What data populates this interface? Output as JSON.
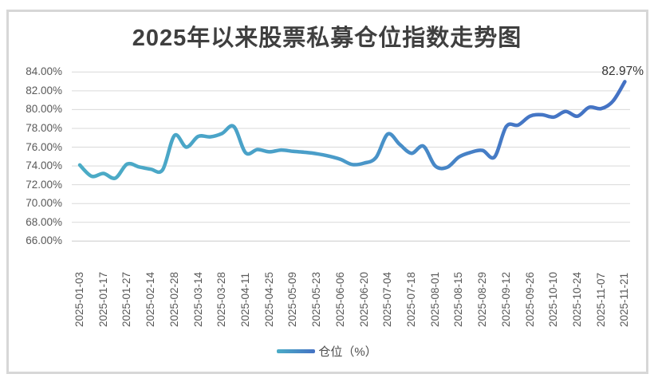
{
  "chart_title": "2025年以来股票私募仓位指数走势图",
  "chart_data": {
    "type": "line",
    "title": "2025年以来股票私募仓位指数走势图",
    "smooth_line": true,
    "grid": true,
    "legend_position": "bottom",
    "ylim": [
      66,
      84
    ],
    "y_tick_step": 2,
    "y_tick_labels": [
      "84.00%",
      "82.00%",
      "80.00%",
      "78.00%",
      "76.00%",
      "74.00%",
      "72.00%",
      "70.00%",
      "68.00%",
      "66.00%"
    ],
    "categories": [
      "2025-01-03",
      "",
      "2025-01-17",
      "",
      "2025-01-27",
      "",
      "2025-02-14",
      "",
      "2025-02-28",
      "",
      "2025-03-14",
      "",
      "2025-03-28",
      "",
      "2025-04-11",
      "",
      "2025-04-25",
      "",
      "2025-05-09",
      "",
      "2025-05-23",
      "",
      "2025-06-06",
      "",
      "2025-06-20",
      "",
      "2025-07-04",
      "",
      "2025-07-18",
      "",
      "2025-08-01",
      "",
      "2025-08-15",
      "",
      "2025-08-29",
      "",
      "2025-09-12",
      "",
      "2025-09-26",
      "",
      "2025-10-10",
      "",
      "2025-10-24",
      "",
      "2025-11-07",
      "",
      "2025-11-21"
    ],
    "series": [
      {
        "name": "仓位（%）",
        "values": [
          74.1,
          72.9,
          73.2,
          72.7,
          74.2,
          73.9,
          73.65,
          73.6,
          77.25,
          76.0,
          77.15,
          77.1,
          77.45,
          78.2,
          75.4,
          75.75,
          75.5,
          75.7,
          75.55,
          75.45,
          75.3,
          75.05,
          74.7,
          74.15,
          74.3,
          74.9,
          77.4,
          76.3,
          75.35,
          76.1,
          74.0,
          73.85,
          74.95,
          75.45,
          75.65,
          74.95,
          78.2,
          78.35,
          79.3,
          79.45,
          79.2,
          79.8,
          79.3,
          80.25,
          80.1,
          80.9,
          82.97
        ]
      }
    ],
    "end_point_label": "82.97%",
    "line_gradient_stops": [
      {
        "offset": 0,
        "color": "#4bacc6"
      },
      {
        "offset": 0.45,
        "color": "#4a9dc9"
      },
      {
        "offset": 0.8,
        "color": "#4577c5"
      },
      {
        "offset": 1,
        "color": "#4472c4"
      }
    ],
    "colors": {
      "gridline": "#d9d9d9",
      "axis_line": "#c9c9c9",
      "axis_text": "#595959",
      "title_text": "#3f3f3f",
      "end_label_text": "#333333",
      "line_start": "#4bacc6",
      "line_end": "#4472c4",
      "frame_border": "#d7d7d7",
      "background": "#ffffff"
    }
  },
  "legend": {
    "label": "仓位（%）"
  }
}
